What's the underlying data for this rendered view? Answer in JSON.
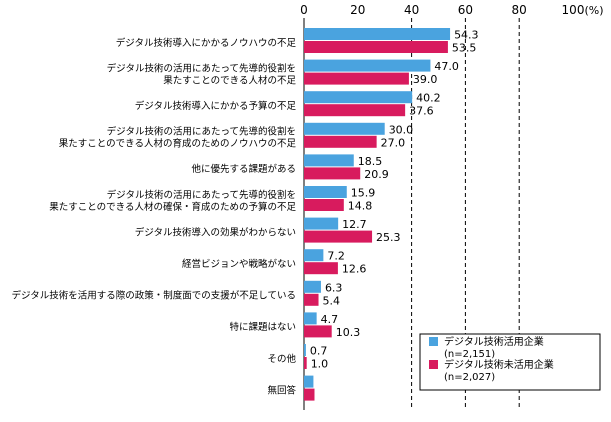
{
  "chart_data": {
    "type": "bar",
    "orientation": "horizontal",
    "title": "",
    "xlabel": "",
    "ylabel": "",
    "xlim": [
      0,
      100
    ],
    "ticks": [
      0,
      20,
      40,
      60,
      80,
      100
    ],
    "unit_label": "(%)",
    "grid": "dashed vertical lines at 40, 60, 80",
    "legend_position": "bottom-right",
    "categories": [
      [
        "デジタル技術導入にかかるノウハウの不足"
      ],
      [
        "デジタル技術の活用にあたって先導的役割を",
        "果たすことのできる人材の不足"
      ],
      [
        "デジタル技術導入にかかる予算の不足"
      ],
      [
        "デジタル技術の活用にあたって先導的役割を",
        "果たすことのできる人材の育成のためのノウハウの不足"
      ],
      [
        "他に優先する課題がある"
      ],
      [
        "デジタル技術の活用にあたって先導的役割を",
        "果たすことのできる人材の確保・育成のための予算の不足"
      ],
      [
        "デジタル技術導入の効果がわからない"
      ],
      [
        "経営ビジョンや戦略がない"
      ],
      [
        "デジタル技術を活用する際の政策・制度面での支援が不足している"
      ],
      [
        "特に課題はない"
      ],
      [
        "その他"
      ],
      [
        "無回答"
      ]
    ],
    "series": [
      {
        "name": "デジタル技術活用企業",
        "n_label": "(n=2,151)",
        "color": "#4aa3df",
        "values": [
          54.3,
          47.0,
          40.2,
          30.0,
          18.5,
          15.9,
          12.7,
          7.2,
          6.3,
          4.7,
          0.7,
          3.5
        ],
        "labels": [
          "54.3",
          "47.0",
          "40.2",
          "30.0",
          "18.5",
          "15.9",
          "12.7",
          "7.2",
          "6.3",
          "4.7",
          "0.7",
          ""
        ]
      },
      {
        "name": "デジタル技術未活用企業",
        "n_label": "(n=2,027)",
        "color": "#d81b5e",
        "values": [
          53.5,
          39.0,
          37.6,
          27.0,
          20.9,
          14.8,
          25.3,
          12.6,
          5.4,
          10.3,
          1.0,
          3.9
        ],
        "labels": [
          "53.5",
          "39.0",
          "37.6",
          "27.0",
          "20.9",
          "14.8",
          "25.3",
          "12.6",
          "5.4",
          "10.3",
          "1.0",
          ""
        ]
      }
    ]
  }
}
